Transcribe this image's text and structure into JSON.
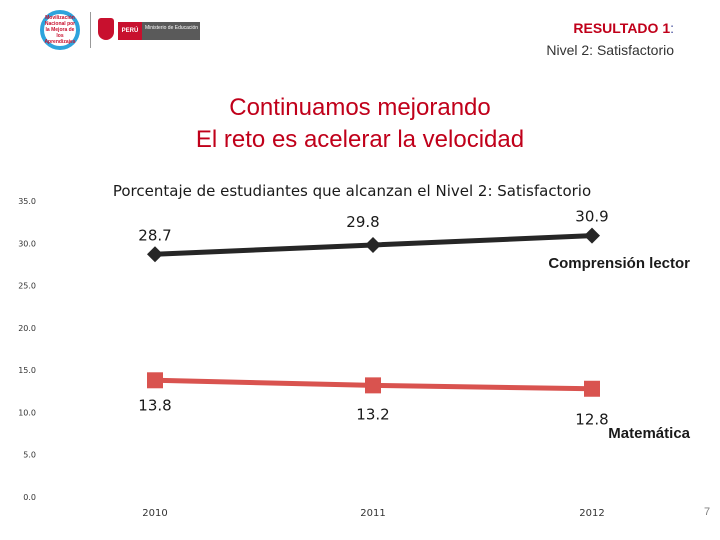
{
  "header": {
    "result_title": "RESULTADO 1",
    "result_suffix": ":",
    "result_subtitle": "Nivel 2: Satisfactorio",
    "logo_badge_text": "Movilización Nacional por la Mejora de los Aprendizajes",
    "logo_country": "PERÚ",
    "logo_ministry": "Ministerio de Educación"
  },
  "headline": {
    "line1": "Continuamos  mejorando",
    "line2": "El reto es acelerar la velocidad"
  },
  "page_number": "7",
  "colors": {
    "accent_red": "#c0001a",
    "lectura_series": "#262626",
    "matematica_series": "#d9534f"
  },
  "chart_data": {
    "type": "line",
    "title": "Porcentaje de estudiantes que alcanzan el Nivel 2: Satisfactorio",
    "categories": [
      "2010",
      "2011",
      "2012"
    ],
    "xlabel": "",
    "ylabel": "",
    "ylim": [
      0,
      35
    ],
    "yticks": [
      "0.0",
      "5.0",
      "10.0",
      "15.0",
      "20.0",
      "25.0",
      "30.0",
      "35.0"
    ],
    "grid": false,
    "series": [
      {
        "name": "Comprensión lector",
        "values": [
          28.7,
          29.8,
          30.9
        ],
        "labels": [
          "28.7",
          "29.8",
          "30.9"
        ],
        "marker": "diamond"
      },
      {
        "name": "Matemática",
        "values": [
          13.8,
          13.2,
          12.8
        ],
        "labels": [
          "13.8",
          "13.2",
          "12.8"
        ],
        "marker": "square"
      }
    ]
  }
}
